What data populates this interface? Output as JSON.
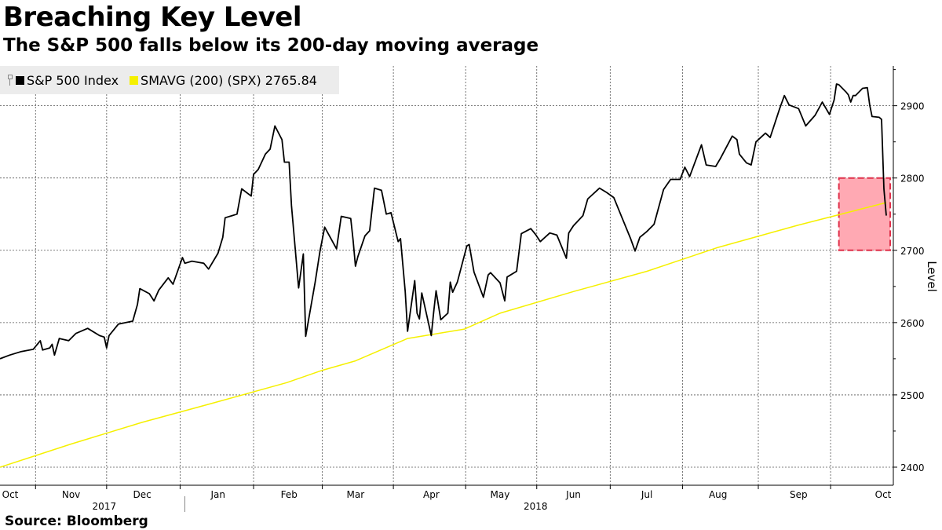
{
  "header": {
    "title": "Breaching Key Level",
    "subtitle": "The S&P 500 falls below its 200-day moving average"
  },
  "footer": {
    "source": "Source: Bloomberg"
  },
  "legend": [
    {
      "label": "S&P 500 Index",
      "color": "#000000"
    },
    {
      "label": "SMAVG (200) (SPX) 2765.84",
      "color": "#f5f000"
    }
  ],
  "chart_data": {
    "type": "line",
    "ylabel": "Level",
    "ylim": [
      2375,
      2955
    ],
    "yticks": [
      2400,
      2500,
      2600,
      2700,
      2800,
      2900
    ],
    "grid": true,
    "legend_position": "top-left",
    "x_domain": [
      "2017-10-02",
      "2018-10-10"
    ],
    "month_ticks": [
      {
        "label": "Oct",
        "date": "2017-10-02"
      },
      {
        "label": "Nov",
        "date": "2017-11-01"
      },
      {
        "label": "Dec",
        "date": "2017-12-01"
      },
      {
        "label": "Jan",
        "date": "2018-01-02"
      },
      {
        "label": "Feb",
        "date": "2018-02-01"
      },
      {
        "label": "Mar",
        "date": "2018-03-01"
      },
      {
        "label": "Apr",
        "date": "2018-04-02"
      },
      {
        "label": "May",
        "date": "2018-05-01"
      },
      {
        "label": "Jun",
        "date": "2018-06-01"
      },
      {
        "label": "Jul",
        "date": "2018-07-02"
      },
      {
        "label": "Aug",
        "date": "2018-08-01"
      },
      {
        "label": "Sep",
        "date": "2018-09-04"
      },
      {
        "label": "Oct",
        "date": "2018-10-01"
      }
    ],
    "year_labels": [
      {
        "label": "2017",
        "date": "2017-11-15"
      },
      {
        "label": "2018",
        "date": "2018-05-16"
      }
    ],
    "year_divider": "2017-12-19",
    "highlight_box": {
      "x": [
        "2018-09-21",
        "2018-10-10"
      ],
      "y": [
        2700,
        2800
      ],
      "color": "#ff8c9a"
    },
    "series": [
      {
        "name": "S&P 500 Index",
        "color": "#000000",
        "points": [
          [
            "2017-10-02",
            2550
          ],
          [
            "2017-10-06",
            2555
          ],
          [
            "2017-10-11",
            2560
          ],
          [
            "2017-10-16",
            2563
          ],
          [
            "2017-10-19",
            2575
          ],
          [
            "2017-10-20",
            2562
          ],
          [
            "2017-10-23",
            2565
          ],
          [
            "2017-10-24",
            2570
          ],
          [
            "2017-10-25",
            2555
          ],
          [
            "2017-10-27",
            2578
          ],
          [
            "2017-10-31",
            2575
          ],
          [
            "2017-11-03",
            2585
          ],
          [
            "2017-11-08",
            2592
          ],
          [
            "2017-11-13",
            2582
          ],
          [
            "2017-11-15",
            2580
          ],
          [
            "2017-11-16",
            2565
          ],
          [
            "2017-11-17",
            2582
          ],
          [
            "2017-11-21",
            2598
          ],
          [
            "2017-11-27",
            2602
          ],
          [
            "2017-11-29",
            2625
          ],
          [
            "2017-11-30",
            2647
          ],
          [
            "2017-12-04",
            2640
          ],
          [
            "2017-12-06",
            2630
          ],
          [
            "2017-12-08",
            2645
          ],
          [
            "2017-12-12",
            2662
          ],
          [
            "2017-12-14",
            2653
          ],
          [
            "2017-12-18",
            2690
          ],
          [
            "2017-12-19",
            2682
          ],
          [
            "2017-12-22",
            2685
          ],
          [
            "2017-12-27",
            2682
          ],
          [
            "2017-12-29",
            2674
          ],
          [
            "2018-01-02",
            2696
          ],
          [
            "2018-01-04",
            2718
          ],
          [
            "2018-01-05",
            2745
          ],
          [
            "2018-01-08",
            2748
          ],
          [
            "2018-01-10",
            2750
          ],
          [
            "2018-01-12",
            2785
          ],
          [
            "2018-01-16",
            2775
          ],
          [
            "2018-01-17",
            2805
          ],
          [
            "2018-01-19",
            2812
          ],
          [
            "2018-01-22",
            2833
          ],
          [
            "2018-01-24",
            2840
          ],
          [
            "2018-01-26",
            2872
          ],
          [
            "2018-01-29",
            2853
          ],
          [
            "2018-01-30",
            2822
          ],
          [
            "2018-02-01",
            2822
          ],
          [
            "2018-02-02",
            2762
          ],
          [
            "2018-02-05",
            2648
          ],
          [
            "2018-02-07",
            2695
          ],
          [
            "2018-02-08",
            2581
          ],
          [
            "2018-02-12",
            2656
          ],
          [
            "2018-02-14",
            2698
          ],
          [
            "2018-02-16",
            2732
          ],
          [
            "2018-02-21",
            2702
          ],
          [
            "2018-02-23",
            2747
          ],
          [
            "2018-02-27",
            2744
          ],
          [
            "2018-02-28",
            2714
          ],
          [
            "2018-03-01",
            2678
          ],
          [
            "2018-03-02",
            2691
          ],
          [
            "2018-03-05",
            2720
          ],
          [
            "2018-03-07",
            2727
          ],
          [
            "2018-03-09",
            2786
          ],
          [
            "2018-03-12",
            2783
          ],
          [
            "2018-03-14",
            2750
          ],
          [
            "2018-03-16",
            2752
          ],
          [
            "2018-03-19",
            2712
          ],
          [
            "2018-03-20",
            2716
          ],
          [
            "2018-03-22",
            2643
          ],
          [
            "2018-03-23",
            2588
          ],
          [
            "2018-03-26",
            2658
          ],
          [
            "2018-03-27",
            2613
          ],
          [
            "2018-03-28",
            2605
          ],
          [
            "2018-03-29",
            2641
          ],
          [
            "2018-04-02",
            2582
          ],
          [
            "2018-04-03",
            2614
          ],
          [
            "2018-04-04",
            2644
          ],
          [
            "2018-04-06",
            2604
          ],
          [
            "2018-04-09",
            2613
          ],
          [
            "2018-04-10",
            2656
          ],
          [
            "2018-04-11",
            2642
          ],
          [
            "2018-04-13",
            2656
          ],
          [
            "2018-04-17",
            2706
          ],
          [
            "2018-04-18",
            2708
          ],
          [
            "2018-04-20",
            2670
          ],
          [
            "2018-04-24",
            2635
          ],
          [
            "2018-04-26",
            2666
          ],
          [
            "2018-04-27",
            2669
          ],
          [
            "2018-05-01",
            2655
          ],
          [
            "2018-05-03",
            2630
          ],
          [
            "2018-05-04",
            2663
          ],
          [
            "2018-05-08",
            2671
          ],
          [
            "2018-05-10",
            2723
          ],
          [
            "2018-05-14",
            2730
          ],
          [
            "2018-05-16",
            2722
          ],
          [
            "2018-05-18",
            2712
          ],
          [
            "2018-05-22",
            2724
          ],
          [
            "2018-05-25",
            2721
          ],
          [
            "2018-05-29",
            2689
          ],
          [
            "2018-05-30",
            2724
          ],
          [
            "2018-06-01",
            2734
          ],
          [
            "2018-06-05",
            2748
          ],
          [
            "2018-06-07",
            2771
          ],
          [
            "2018-06-12",
            2786
          ],
          [
            "2018-06-15",
            2780
          ],
          [
            "2018-06-18",
            2773
          ],
          [
            "2018-06-21",
            2749
          ],
          [
            "2018-06-25",
            2717
          ],
          [
            "2018-06-27",
            2699
          ],
          [
            "2018-06-29",
            2718
          ],
          [
            "2018-07-02",
            2726
          ],
          [
            "2018-07-05",
            2736
          ],
          [
            "2018-07-09",
            2784
          ],
          [
            "2018-07-12",
            2798
          ],
          [
            "2018-07-16",
            2798
          ],
          [
            "2018-07-18",
            2815
          ],
          [
            "2018-07-20",
            2802
          ],
          [
            "2018-07-25",
            2846
          ],
          [
            "2018-07-27",
            2818
          ],
          [
            "2018-07-31",
            2816
          ],
          [
            "2018-08-02",
            2827
          ],
          [
            "2018-08-07",
            2858
          ],
          [
            "2018-08-09",
            2853
          ],
          [
            "2018-08-10",
            2833
          ],
          [
            "2018-08-13",
            2821
          ],
          [
            "2018-08-15",
            2818
          ],
          [
            "2018-08-17",
            2850
          ],
          [
            "2018-08-21",
            2862
          ],
          [
            "2018-08-23",
            2856
          ],
          [
            "2018-08-27",
            2896
          ],
          [
            "2018-08-29",
            2914
          ],
          [
            "2018-08-31",
            2901
          ],
          [
            "2018-09-04",
            2896
          ],
          [
            "2018-09-07",
            2872
          ],
          [
            "2018-09-11",
            2887
          ],
          [
            "2018-09-14",
            2905
          ],
          [
            "2018-09-17",
            2888
          ],
          [
            "2018-09-19",
            2908
          ],
          [
            "2018-09-20",
            2930
          ],
          [
            "2018-09-21",
            2929
          ],
          [
            "2018-09-24",
            2919
          ],
          [
            "2018-09-25",
            2915
          ],
          [
            "2018-09-26",
            2905
          ],
          [
            "2018-09-27",
            2914
          ],
          [
            "2018-09-28",
            2914
          ],
          [
            "2018-10-01",
            2924
          ],
          [
            "2018-10-03",
            2925
          ],
          [
            "2018-10-04",
            2901
          ],
          [
            "2018-10-05",
            2885
          ],
          [
            "2018-10-08",
            2884
          ],
          [
            "2018-10-09",
            2881
          ],
          [
            "2018-10-10",
            2785
          ],
          [
            "2018-10-11",
            2748
          ]
        ]
      },
      {
        "name": "SMAVG (200) (SPX) 2765.84",
        "color": "#f5f000",
        "points": [
          [
            "2017-10-02",
            2400
          ],
          [
            "2017-11-01",
            2432
          ],
          [
            "2017-12-01",
            2462
          ],
          [
            "2017-12-29",
            2487
          ],
          [
            "2018-01-31",
            2517
          ],
          [
            "2018-02-15",
            2534
          ],
          [
            "2018-03-01",
            2547
          ],
          [
            "2018-03-23",
            2578
          ],
          [
            "2018-04-16",
            2591
          ],
          [
            "2018-05-01",
            2613
          ],
          [
            "2018-06-01",
            2643
          ],
          [
            "2018-07-02",
            2671
          ],
          [
            "2018-08-01",
            2704
          ],
          [
            "2018-09-04",
            2735
          ],
          [
            "2018-10-11",
            2766
          ]
        ]
      }
    ]
  }
}
